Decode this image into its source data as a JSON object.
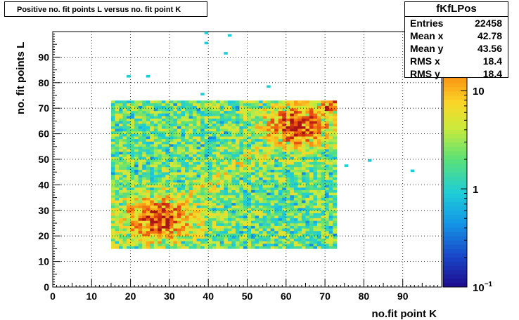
{
  "header": {
    "title": "Positive no. fit points L versus no. fit point K"
  },
  "stats": {
    "name": "fKfLPos",
    "rows": [
      {
        "label": "Entries",
        "value": "22458"
      },
      {
        "label": "Mean x",
        "value": "42.78"
      },
      {
        "label": "Mean y",
        "value": "43.56"
      },
      {
        "label": "RMS x",
        "value": "18.4"
      },
      {
        "label": "RMS y",
        "value": "18.4"
      }
    ]
  },
  "chart_data": {
    "type": "heatmap",
    "title": "Positive no. fit points L versus no. fit point K",
    "xlabel": "no.fit point K",
    "ylabel": "no. fit points  L",
    "xlim": [
      0,
      100
    ],
    "ylim": [
      0,
      100
    ],
    "x_ticks": [
      "0",
      "10",
      "20",
      "30",
      "40",
      "50",
      "60",
      "70",
      "80",
      "90"
    ],
    "y_ticks": [
      "0",
      "10",
      "20",
      "30",
      "40",
      "50",
      "60",
      "70",
      "80",
      "90"
    ],
    "grid": true,
    "colorbar": {
      "scale": "log",
      "ticks": [
        "10",
        "1",
        "10"
      ],
      "tick_exps": [
        "",
        "",
        "−1"
      ],
      "range": [
        0.1,
        40
      ]
    },
    "regions": [
      {
        "x": [
          15,
          73
        ],
        "y": [
          15,
          73
        ],
        "description": "dense band"
      }
    ],
    "hotspots": [
      {
        "x": 27,
        "y": 27,
        "level": "high"
      },
      {
        "x": 63,
        "y": 63,
        "level": "high"
      },
      {
        "x": 71,
        "y": 71,
        "level": "high"
      }
    ],
    "outliers": [
      {
        "x": 39,
        "y": 99
      },
      {
        "x": 45,
        "y": 98
      },
      {
        "x": 39,
        "y": 95
      },
      {
        "x": 44,
        "y": 91
      },
      {
        "x": 19,
        "y": 82
      },
      {
        "x": 24,
        "y": 82
      },
      {
        "x": 55,
        "y": 78
      },
      {
        "x": 38,
        "y": 75
      },
      {
        "x": 75,
        "y": 47
      },
      {
        "x": 81,
        "y": 49
      },
      {
        "x": 92,
        "y": 45
      }
    ]
  }
}
